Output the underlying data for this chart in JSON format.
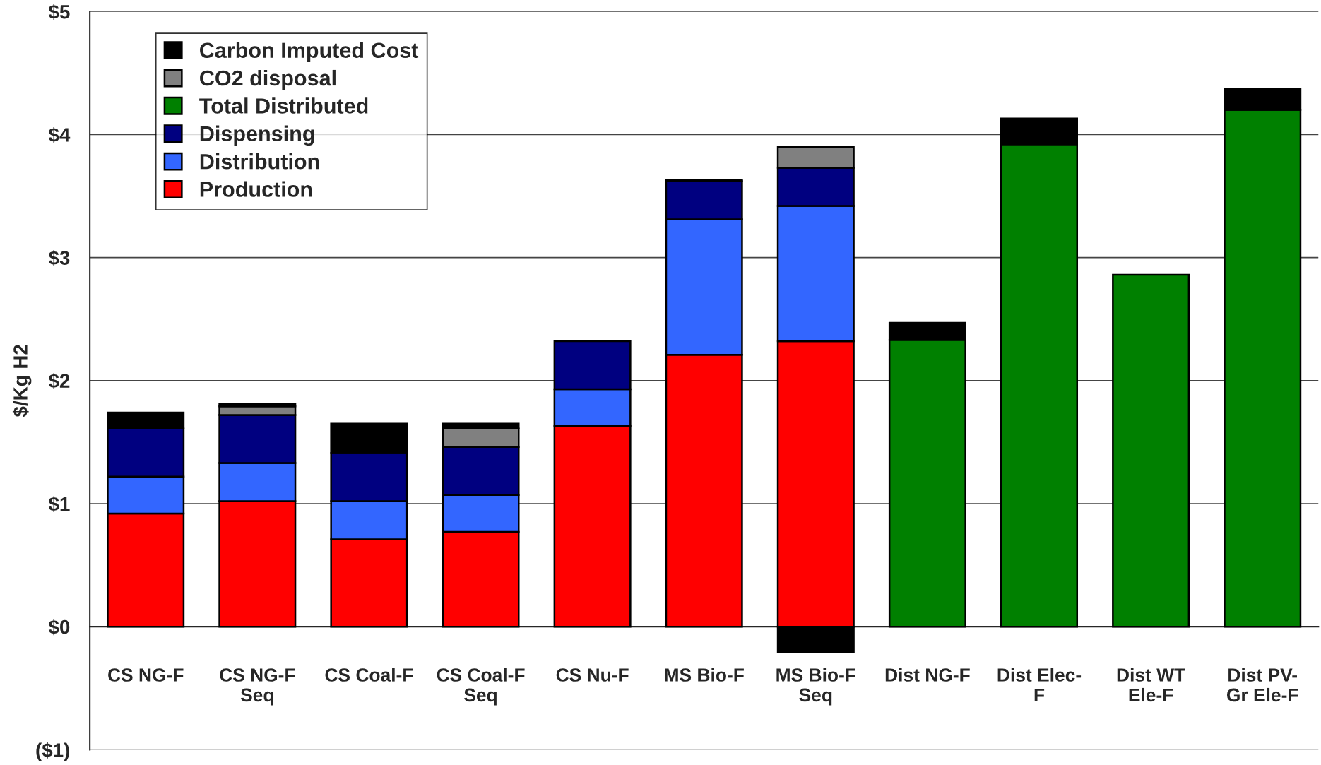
{
  "chart_data": {
    "type": "bar",
    "stacked": true,
    "ylabel": "$/Kg H2",
    "categories": [
      "CS NG-F",
      "CS NG-F\nSeq",
      "CS Coal-F",
      "CS Coal-F\nSeq",
      "CS Nu-F",
      "MS Bio-F",
      "MS Bio-F\nSeq",
      "Dist NG-F",
      "Dist Elec-\nF",
      "Dist WT\nEle-F",
      "Dist PV-\nGr Ele-F"
    ],
    "series": [
      {
        "name": "Production",
        "color": "#ff0000",
        "values": [
          0.92,
          1.02,
          0.71,
          0.77,
          1.63,
          2.21,
          2.32,
          null,
          null,
          null,
          null
        ]
      },
      {
        "name": "Distribution",
        "color": "#3366ff",
        "values": [
          0.3,
          0.31,
          0.31,
          0.3,
          0.3,
          1.1,
          1.1,
          null,
          null,
          null,
          null
        ]
      },
      {
        "name": "Dispensing",
        "color": "#000080",
        "values": [
          0.39,
          0.39,
          0.39,
          0.39,
          0.39,
          0.31,
          0.31,
          null,
          null,
          null,
          null
        ]
      },
      {
        "name": "Total Distributed",
        "color": "#008000",
        "values": [
          null,
          null,
          null,
          null,
          null,
          null,
          null,
          2.33,
          3.92,
          2.86,
          4.2
        ]
      },
      {
        "name": "CO2 disposal",
        "color": "#808080",
        "values": [
          null,
          0.07,
          null,
          0.15,
          null,
          null,
          0.17,
          null,
          null,
          null,
          null
        ]
      },
      {
        "name": "Carbon Imputed Cost",
        "color": "#000000",
        "values": [
          0.13,
          0.02,
          0.24,
          0.04,
          null,
          0.01,
          -0.21,
          0.14,
          0.21,
          null,
          0.17
        ]
      }
    ],
    "ylim": [
      -1,
      5
    ],
    "yticks": [
      {
        "value": -1,
        "label": "($1)"
      },
      {
        "value": 0,
        "label": "$0"
      },
      {
        "value": 1,
        "label": "$1"
      },
      {
        "value": 2,
        "label": "$2"
      },
      {
        "value": 3,
        "label": "$3"
      },
      {
        "value": 4,
        "label": "$4"
      },
      {
        "value": 5,
        "label": "$5"
      }
    ],
    "grid": "y",
    "legend": "top left"
  }
}
